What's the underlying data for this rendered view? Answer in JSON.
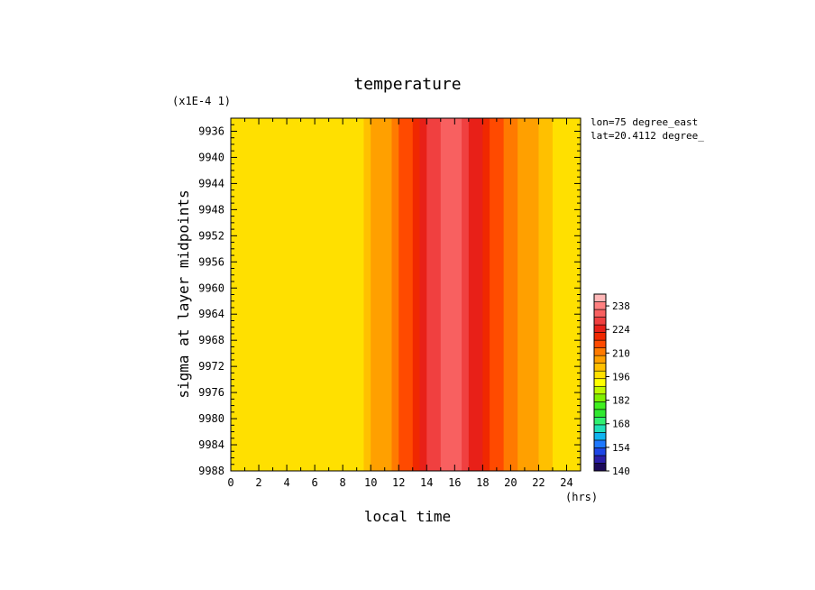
{
  "chart_data": {
    "type": "heatmap",
    "title": "temperature",
    "xlabel": "local time",
    "ylabel": "sigma at layer midpoints",
    "x_units": "(hrs)",
    "y_scale_note": "(x1E-4 1)",
    "annotations": [
      "lon=75 degree_east",
      "lat=20.4112 degree_"
    ],
    "xlim": [
      0,
      25
    ],
    "ylim": [
      9988,
      9934
    ],
    "x_ticks": [
      "0",
      "2",
      "4",
      "6",
      "8",
      "10",
      "12",
      "14",
      "16",
      "18",
      "20",
      "22",
      "24"
    ],
    "y_ticks": [
      "9936",
      "9940",
      "9944",
      "9948",
      "9952",
      "9956",
      "9960",
      "9964",
      "9968",
      "9972",
      "9976",
      "9980",
      "9984",
      "9988"
    ],
    "x_hours": [
      0,
      1,
      2,
      3,
      4,
      5,
      6,
      7,
      8,
      9,
      10,
      11,
      12,
      13,
      14,
      15,
      16,
      17,
      18,
      19,
      20,
      21,
      22,
      23,
      24
    ],
    "temperature_by_hour": [
      195,
      196,
      197,
      198,
      198,
      198,
      198,
      198,
      197,
      196,
      203,
      207,
      212,
      219,
      226,
      232,
      235,
      228,
      222,
      215,
      210,
      207,
      203,
      200,
      196
    ],
    "colorbar": {
      "min": 140,
      "max": 245,
      "levels": [
        140,
        154,
        168,
        182,
        196,
        210,
        224,
        238
      ],
      "colors": [
        "#1c0a5a",
        "#2a1ea8",
        "#1e46e6",
        "#1e78ff",
        "#10b4f0",
        "#20e0b8",
        "#30f070",
        "#30e830",
        "#40f020",
        "#80f000",
        "#c0f800",
        "#ffff00",
        "#ffe000",
        "#ffc000",
        "#ffa000",
        "#ff7a00",
        "#ff4a00",
        "#f02800",
        "#e82018",
        "#f04040",
        "#f86060",
        "#ff8080",
        "#ffb8b8"
      ]
    }
  }
}
